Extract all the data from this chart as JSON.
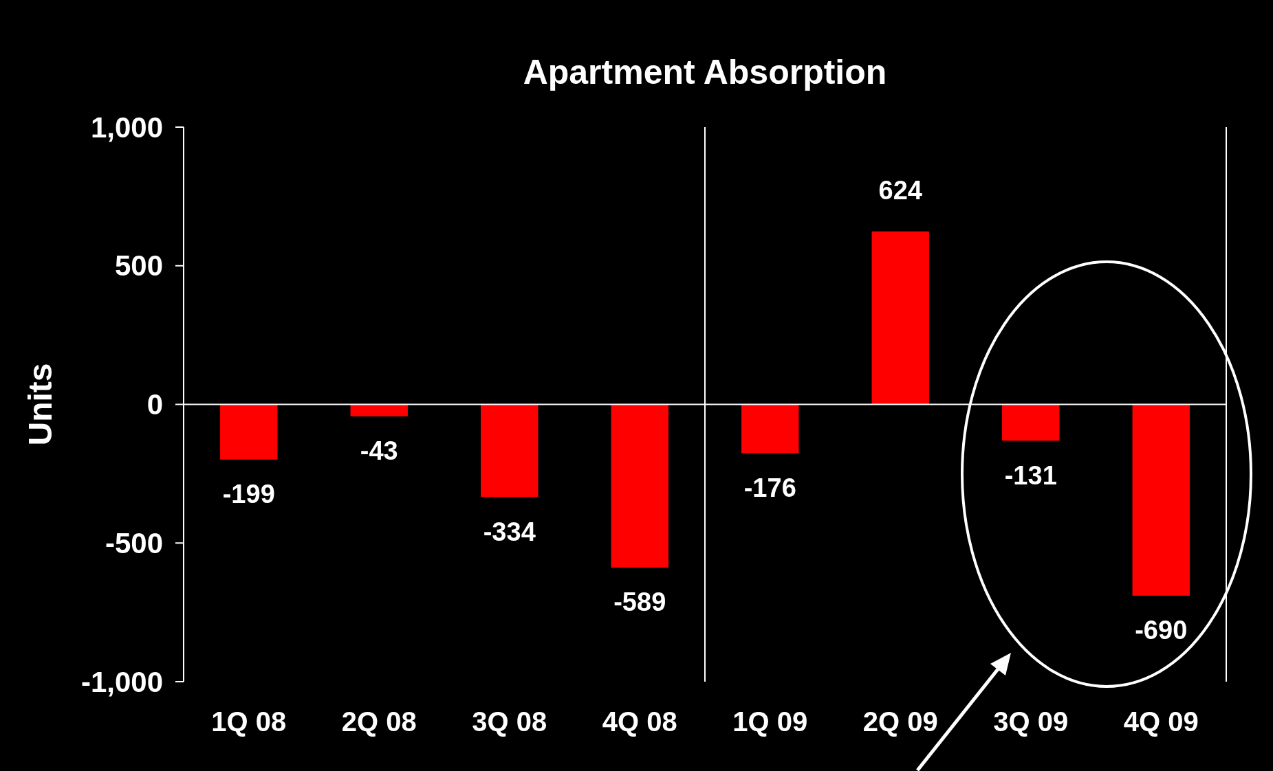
{
  "chart_data": {
    "type": "bar",
    "title": "Apartment Absorption",
    "ylabel": "Units",
    "categories": [
      "1Q 08",
      "2Q 08",
      "3Q 08",
      "4Q 08",
      "1Q 09",
      "2Q 09",
      "3Q 09",
      "4Q 09"
    ],
    "values": [
      -199,
      -43,
      -334,
      -589,
      -176,
      624,
      -131,
      -690
    ],
    "color": "#ff0000",
    "ylim": [
      -1000,
      1000
    ],
    "yticks": [
      {
        "value": -1000,
        "label": "-1,000"
      },
      -500,
      0,
      500,
      {
        "value": 1000,
        "label": "1,000"
      }
    ],
    "data_labels": true
  }
}
